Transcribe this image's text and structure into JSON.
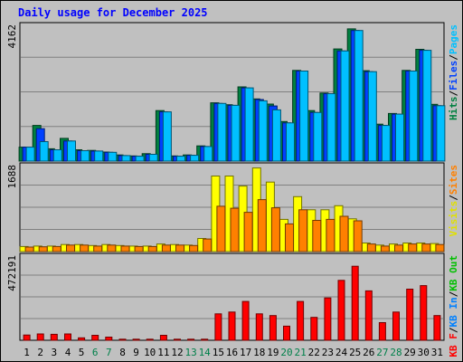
{
  "title": "Daily usage for December 2025",
  "chart_data": [
    {
      "type": "bar",
      "panel": "hits",
      "categories": [
        "1",
        "2",
        "3",
        "4",
        "5",
        "6",
        "7",
        "8",
        "9",
        "10",
        "11",
        "12",
        "13",
        "14",
        "15",
        "16",
        "17",
        "18",
        "19",
        "20",
        "21",
        "22",
        "23",
        "24",
        "25",
        "26",
        "27",
        "28",
        "29",
        "30",
        "31"
      ],
      "weekend_days": [
        6,
        7,
        13,
        14,
        20,
        21,
        27,
        28
      ],
      "ymax_label": "4162",
      "ymax": 4162,
      "legend": [
        {
          "text": "Hits",
          "color": "#008040"
        },
        {
          "text": "/",
          "color": "#000000"
        },
        {
          "text": "Files",
          "color": "#0040ff"
        },
        {
          "text": "/",
          "color": "#000000"
        },
        {
          "text": "Pages",
          "color": "#00c0ff"
        }
      ],
      "series": [
        {
          "name": "Hits",
          "color": "#008040",
          "values": [
            430,
            1100,
            380,
            700,
            350,
            330,
            280,
            190,
            160,
            230,
            1560,
            160,
            190,
            470,
            1800,
            1740,
            2290,
            1920,
            1760,
            1220,
            2800,
            1560,
            2100,
            3460,
            4080,
            2790,
            1140,
            1470,
            2800,
            3450,
            1750
          ]
        },
        {
          "name": "Files",
          "color": "#0040ff",
          "values": [
            430,
            1000,
            350,
            620,
            320,
            310,
            270,
            170,
            150,
            210,
            1520,
            150,
            180,
            450,
            1780,
            1720,
            2260,
            1900,
            1700,
            1180,
            2780,
            1500,
            2080,
            3400,
            4030,
            2760,
            1100,
            1450,
            2780,
            3420,
            1710
          ]
        },
        {
          "name": "Pages",
          "color": "#00c0ff",
          "values": [
            430,
            600,
            350,
            620,
            320,
            310,
            270,
            170,
            150,
            210,
            1520,
            150,
            180,
            450,
            1780,
            1720,
            2260,
            1860,
            1580,
            1180,
            2780,
            1500,
            2080,
            3400,
            4030,
            2760,
            1100,
            1450,
            2780,
            3420,
            1710
          ]
        }
      ]
    },
    {
      "type": "bar",
      "panel": "visits",
      "categories": [
        "1",
        "2",
        "3",
        "4",
        "5",
        "6",
        "7",
        "8",
        "9",
        "10",
        "11",
        "12",
        "13",
        "14",
        "15",
        "16",
        "17",
        "18",
        "19",
        "20",
        "21",
        "22",
        "23",
        "24",
        "25",
        "26",
        "27",
        "28",
        "29",
        "30",
        "31"
      ],
      "ymax_label": "1688",
      "ymax": 1688,
      "legend": [
        {
          "text": "Visits",
          "color": "#e0e000"
        },
        {
          "text": "/",
          "color": "#000000"
        },
        {
          "text": "Sites",
          "color": "#ff8000"
        }
      ],
      "series": [
        {
          "name": "Visits",
          "color": "#ffff00",
          "values": [
            100,
            110,
            110,
            140,
            140,
            120,
            140,
            120,
            110,
            110,
            150,
            140,
            130,
            260,
            1500,
            1500,
            1300,
            1660,
            1380,
            640,
            1090,
            830,
            830,
            910,
            650,
            170,
            130,
            150,
            170,
            170,
            160
          ]
        },
        {
          "name": "Sites",
          "color": "#ff8000",
          "values": [
            90,
            95,
            100,
            130,
            130,
            110,
            130,
            110,
            100,
            100,
            130,
            130,
            120,
            250,
            900,
            860,
            780,
            1030,
            870,
            550,
            830,
            620,
            640,
            700,
            610,
            150,
            110,
            130,
            150,
            150,
            140
          ]
        }
      ]
    },
    {
      "type": "bar",
      "panel": "kbytes",
      "categories": [
        "1",
        "2",
        "3",
        "4",
        "5",
        "6",
        "7",
        "8",
        "9",
        "10",
        "11",
        "12",
        "13",
        "14",
        "15",
        "16",
        "17",
        "18",
        "19",
        "20",
        "21",
        "22",
        "23",
        "24",
        "25",
        "26",
        "27",
        "28",
        "29",
        "30",
        "31"
      ],
      "ymax_label": "472191",
      "ymax": 472191,
      "legend": [
        {
          "text": "KB F",
          "color": "#ff0000"
        },
        {
          "text": "/",
          "color": "#000000"
        },
        {
          "text": "KB In",
          "color": "#0080ff"
        },
        {
          "text": "/",
          "color": "#000000"
        },
        {
          "text": "KB Out",
          "color": "#00c000"
        }
      ],
      "series": [
        {
          "name": "KB F",
          "color": "#ff0000",
          "values": [
            30000,
            36000,
            34000,
            36000,
            14000,
            28000,
            18000,
            6000,
            6000,
            6000,
            28000,
            6000,
            6000,
            6000,
            150000,
            160000,
            220000,
            150000,
            140000,
            80000,
            220000,
            130000,
            240000,
            340000,
            420000,
            280000,
            100000,
            160000,
            290000,
            310000,
            140000
          ]
        }
      ]
    }
  ]
}
